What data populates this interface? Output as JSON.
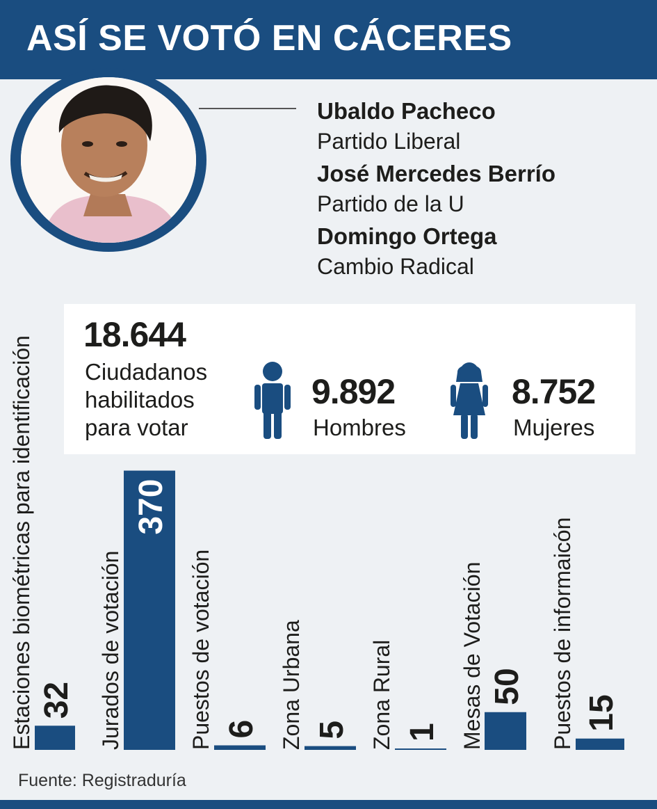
{
  "header": {
    "title": "ASÍ SE VOTÓ EN CÁCERES"
  },
  "candidates": [
    {
      "name": "Ubaldo Pacheco",
      "party": "Partido Liberal"
    },
    {
      "name": "José Mercedes Berrío",
      "party": "Partido de la U"
    },
    {
      "name": "Domingo Ortega",
      "party": "Cambio Radical"
    }
  ],
  "stats": {
    "total": "18.644",
    "total_label_lines": [
      "Ciudadanos",
      "habilitados",
      "para votar"
    ],
    "men": "9.892",
    "men_label": "Hombres",
    "men_icon": "male-person-icon",
    "women": "8.752",
    "women_label": "Mujeres",
    "women_icon": "female-person-icon"
  },
  "chart_data": {
    "type": "bar",
    "categories": [
      "Estaciones biométricas para identificación",
      "Jurados de votación",
      "Puestos de votación",
      "Zona Urbana",
      "Zona Rural",
      "Mesas de Votación",
      "Puestos de informaicón"
    ],
    "values": [
      32,
      370,
      6,
      5,
      1,
      50,
      15
    ],
    "value_labels": [
      "32",
      "370",
      "6",
      "5",
      "1",
      "50",
      "15"
    ],
    "bar_color": "#1a4d80"
  },
  "source": "Fuente: Registraduría",
  "colors": {
    "brand": "#1a4d80",
    "background": "#eef1f4",
    "panel": "#ffffff"
  }
}
